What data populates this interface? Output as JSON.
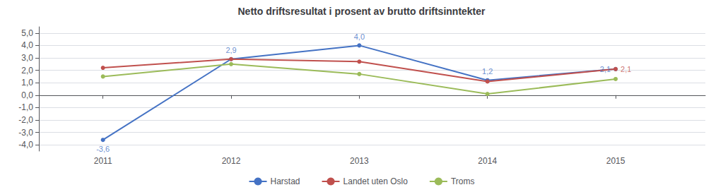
{
  "chart_data": {
    "type": "line",
    "title": "Netto driftsresultat i prosent av brutto driftsinntekter",
    "x": [
      2011,
      2012,
      2013,
      2014,
      2015
    ],
    "series": [
      {
        "name": "Harstad",
        "color": "#4472C4",
        "values": [
          -3.6,
          2.9,
          4.0,
          1.2,
          2.1
        ]
      },
      {
        "name": "Landet uten Oslo",
        "color": "#C0504D",
        "values": [
          2.2,
          2.9,
          2.7,
          1.1,
          2.1
        ]
      },
      {
        "name": "Troms",
        "color": "#9BBB59",
        "values": [
          1.5,
          2.5,
          1.7,
          0.1,
          1.3
        ]
      }
    ],
    "xlim": [
      2010.5,
      2015.7
    ],
    "xticks": [
      2011,
      2012,
      2013,
      2014,
      2015
    ],
    "ylim": [
      -4.5,
      5.5
    ],
    "yticks": [
      {
        "value": -4.0,
        "label": "-4,0"
      },
      {
        "value": -3.0,
        "label": "-3,0"
      },
      {
        "value": -2.0,
        "label": "-2,0"
      },
      {
        "value": -1.0,
        "label": "-1,0"
      },
      {
        "value": 0.0,
        "label": "0,0"
      },
      {
        "value": 1.0,
        "label": "1,0"
      },
      {
        "value": 2.0,
        "label": "2,0"
      },
      {
        "value": 3.0,
        "label": "3,0"
      },
      {
        "value": 4.0,
        "label": "4,0"
      },
      {
        "value": 5.0,
        "label": "5,0"
      }
    ],
    "grid": true,
    "legend": "bottom",
    "marker": "circle",
    "annotations": [
      {
        "text": "-3,6",
        "x": 2011,
        "y": -3.6,
        "series": "Harstad"
      },
      {
        "text": "2,9",
        "x": 2012,
        "y": 2.9,
        "series": "Harstad"
      },
      {
        "text": "4,0",
        "x": 2013,
        "y": 4.0,
        "series": "Harstad"
      },
      {
        "text": "1,2",
        "x": 2014,
        "y": 1.2,
        "series": "Harstad"
      },
      {
        "text": "2,1",
        "x": 2015,
        "y": 2.1,
        "series": "Harstad"
      },
      {
        "text": "2,1",
        "x": 2015,
        "y": 2.1,
        "series": "Landet uten Oslo"
      }
    ]
  }
}
